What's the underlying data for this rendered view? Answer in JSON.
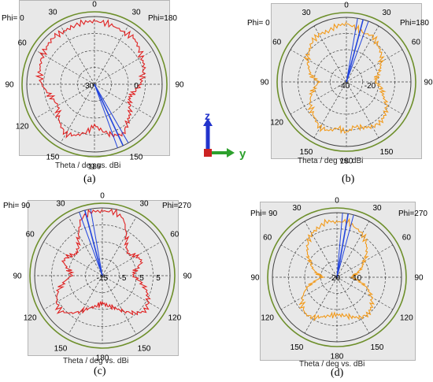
{
  "colors": {
    "pattern_red": "#e02020",
    "pattern_orange": "#f29a1a",
    "beam_blue": "#2244dd",
    "outer_ring": "#6d8f2a",
    "grid": "#444444",
    "axis_z": "#2233cc",
    "axis_y": "#2da02d",
    "axis_x": "#cc2222"
  },
  "axes_icon": {
    "z_label": "z",
    "y_label": "y"
  },
  "chart_data": [
    {
      "type": "polar",
      "caption": "(a)",
      "phi_left": "Phi=  0",
      "phi_right": "Phi=180",
      "xlabel": "Theta / deg vs. dBi",
      "angle_labels": [
        "0",
        "30",
        "30",
        "60",
        "90",
        "90",
        "120",
        "150",
        "180",
        "150"
      ],
      "radial_labels": [
        "-30",
        "0"
      ],
      "series_color": "pattern_red",
      "beam_angle_deg": 155,
      "series": [
        {
          "name": "",
          "theta": [
            0,
            10,
            20,
            30,
            40,
            50,
            60,
            70,
            80,
            90,
            100,
            110,
            120,
            130,
            140,
            150,
            160,
            170,
            180,
            190,
            200,
            210,
            220,
            230,
            240,
            250,
            260,
            270,
            280,
            290,
            300,
            310,
            320,
            330,
            340,
            350
          ],
          "r": [
            0.93,
            0.92,
            0.9,
            0.88,
            0.9,
            0.85,
            0.8,
            0.78,
            0.72,
            0.68,
            0.6,
            0.55,
            0.6,
            0.68,
            0.75,
            0.85,
            0.8,
            0.7,
            0.6,
            0.72,
            0.8,
            0.85,
            0.78,
            0.7,
            0.62,
            0.65,
            0.7,
            0.78,
            0.82,
            0.85,
            0.88,
            0.9,
            0.92,
            0.9,
            0.91,
            0.93
          ]
        }
      ]
    },
    {
      "type": "polar",
      "caption": "(b)",
      "phi_left": "Phi=  0",
      "phi_right": "Phi=180",
      "xlabel": "Theta / deg vs. dBi",
      "angle_labels": [
        "0",
        "30",
        "30",
        "60",
        "60",
        "90",
        "90",
        "120",
        "150",
        "180",
        "150"
      ],
      "radial_labels": [
        "-40",
        "-20"
      ],
      "series_color": "pattern_orange",
      "beam_angle_deg": 15,
      "series": [
        {
          "name": "",
          "theta": [
            0,
            10,
            20,
            30,
            40,
            50,
            60,
            70,
            80,
            90,
            100,
            110,
            120,
            130,
            140,
            150,
            160,
            170,
            180,
            190,
            200,
            210,
            220,
            230,
            240,
            250,
            260,
            270,
            280,
            290,
            300,
            310,
            320,
            330,
            340,
            350
          ],
          "r": [
            0.9,
            0.85,
            0.8,
            0.82,
            0.75,
            0.7,
            0.62,
            0.55,
            0.48,
            0.45,
            0.55,
            0.6,
            0.72,
            0.78,
            0.82,
            0.8,
            0.75,
            0.7,
            0.78,
            0.72,
            0.8,
            0.82,
            0.75,
            0.7,
            0.65,
            0.58,
            0.5,
            0.42,
            0.55,
            0.62,
            0.7,
            0.75,
            0.82,
            0.85,
            0.83,
            0.88
          ]
        }
      ]
    },
    {
      "type": "polar",
      "caption": "(c)",
      "phi_left": "Phi= 90",
      "phi_right": "Phi=270",
      "xlabel": "Theta / deg vs. dBi",
      "angle_labels": [
        "0",
        "30",
        "30",
        "60",
        "60",
        "90",
        "90",
        "120",
        "120",
        "150",
        "180",
        "150"
      ],
      "radial_labels": [
        "-15",
        "-5",
        "5",
        "5"
      ],
      "series_color": "pattern_red",
      "beam_angle_deg": 345,
      "series": [
        {
          "name": "",
          "theta": [
            0,
            10,
            20,
            30,
            40,
            50,
            60,
            70,
            80,
            90,
            100,
            110,
            120,
            130,
            140,
            150,
            160,
            170,
            180,
            190,
            200,
            210,
            220,
            230,
            240,
            250,
            260,
            270,
            280,
            290,
            300,
            310,
            320,
            330,
            340,
            350
          ],
          "r": [
            0.95,
            0.96,
            0.9,
            0.7,
            0.55,
            0.5,
            0.58,
            0.62,
            0.5,
            0.45,
            0.58,
            0.7,
            0.78,
            0.82,
            0.72,
            0.6,
            0.5,
            0.45,
            0.4,
            0.45,
            0.5,
            0.6,
            0.72,
            0.82,
            0.78,
            0.7,
            0.58,
            0.45,
            0.5,
            0.62,
            0.58,
            0.5,
            0.55,
            0.7,
            0.9,
            0.96
          ]
        }
      ]
    },
    {
      "type": "polar",
      "caption": "(d)",
      "phi_left": "Phi= 90",
      "phi_right": "Phi=270",
      "xlabel": "Theta / deg vs. dBi",
      "angle_labels": [
        "0",
        "30",
        "30",
        "60",
        "60",
        "90",
        "90",
        "120",
        "120",
        "150",
        "180",
        "150"
      ],
      "radial_labels": [
        "-20",
        "-10"
      ],
      "series_color": "pattern_orange",
      "beam_angle_deg": 10,
      "series": [
        {
          "name": "",
          "theta": [
            0,
            10,
            20,
            30,
            40,
            50,
            60,
            70,
            80,
            90,
            100,
            110,
            120,
            130,
            140,
            150,
            160,
            170,
            180,
            190,
            200,
            210,
            220,
            230,
            240,
            250,
            260,
            270,
            280,
            290,
            300,
            310,
            320,
            330,
            340,
            350
          ],
          "r": [
            0.85,
            0.88,
            0.82,
            0.78,
            0.7,
            0.6,
            0.48,
            0.4,
            0.3,
            0.22,
            0.35,
            0.5,
            0.62,
            0.7,
            0.75,
            0.72,
            0.65,
            0.6,
            0.58,
            0.6,
            0.65,
            0.72,
            0.75,
            0.7,
            0.62,
            0.5,
            0.35,
            0.22,
            0.3,
            0.4,
            0.48,
            0.6,
            0.7,
            0.78,
            0.82,
            0.88
          ]
        }
      ]
    }
  ]
}
